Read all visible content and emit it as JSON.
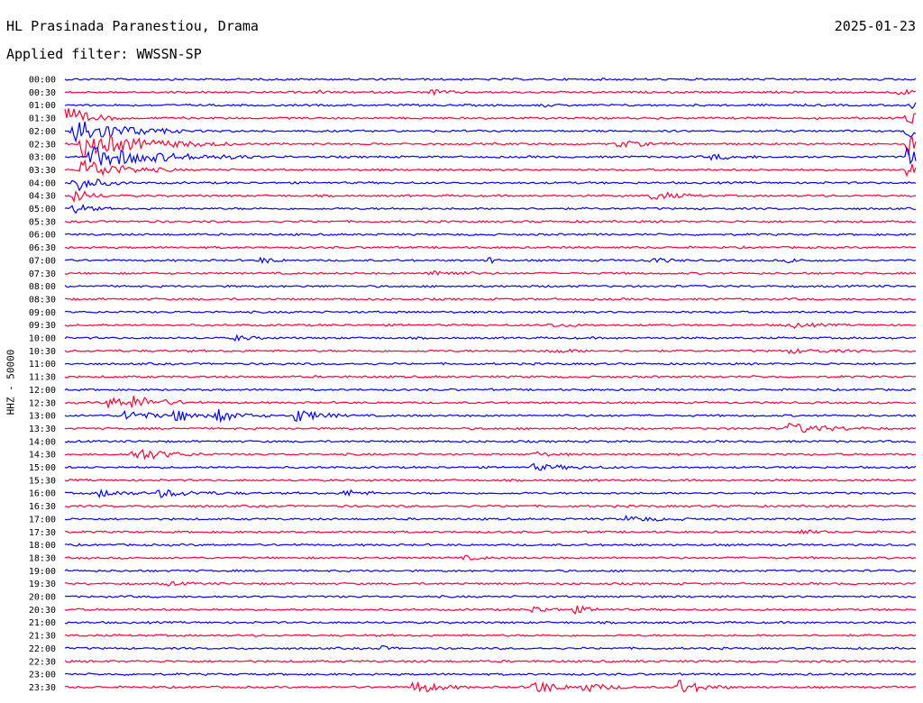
{
  "header": {
    "station": "HL Prasinada Paranestiou, Drama",
    "date": "2025-01-23",
    "filter": "Applied filter: WWSSN-SP"
  },
  "chart_data": {
    "type": "line",
    "title": "HL Prasinada Paranestiou, Drama",
    "ylabel": "HHZ - 50000",
    "row_labels": [
      "00:00",
      "00:30",
      "01:00",
      "01:30",
      "02:00",
      "02:30",
      "03:00",
      "03:30",
      "04:00",
      "04:30",
      "05:00",
      "05:30",
      "06:00",
      "06:30",
      "07:00",
      "07:30",
      "08:00",
      "08:30",
      "09:00",
      "09:30",
      "10:00",
      "10:30",
      "11:00",
      "11:30",
      "12:00",
      "12:30",
      "13:00",
      "13:30",
      "14:00",
      "14:30",
      "15:00",
      "15:30",
      "16:00",
      "16:30",
      "17:00",
      "17:30",
      "18:00",
      "18:30",
      "19:00",
      "19:30",
      "20:00",
      "20:30",
      "21:00",
      "21:30",
      "22:00",
      "22:30",
      "23:00",
      "23:30"
    ],
    "colors": {
      "even": "#0000ff",
      "odd": "#ff0033"
    },
    "grid": false,
    "x_range_minutes": [
      0,
      30
    ],
    "events": [
      {
        "row": 0,
        "pos": 0.0,
        "amp": 1.0,
        "dur": 0.0
      },
      {
        "row": 1,
        "pos": 0.43,
        "amp": 3,
        "dur": 0.02
      },
      {
        "row": 1,
        "pos": 0.3,
        "amp": 2,
        "dur": 0.01
      },
      {
        "row": 1,
        "pos": 0.98,
        "amp": 3,
        "dur": 0.02
      },
      {
        "row": 2,
        "pos": 0.56,
        "amp": 2,
        "dur": 0.01
      },
      {
        "row": 2,
        "pos": 0.99,
        "amp": 10,
        "dur": 0.01
      },
      {
        "row": 3,
        "pos": 0.0,
        "amp": 14,
        "dur": 0.03
      },
      {
        "row": 3,
        "pos": 0.99,
        "amp": 14,
        "dur": 0.01
      },
      {
        "row": 4,
        "pos": 0.01,
        "amp": 16,
        "dur": 0.06
      },
      {
        "row": 4,
        "pos": 0.99,
        "amp": 14,
        "dur": 0.01
      },
      {
        "row": 5,
        "pos": 0.02,
        "amp": 14,
        "dur": 0.08
      },
      {
        "row": 5,
        "pos": 0.65,
        "amp": 4,
        "dur": 0.03
      },
      {
        "row": 5,
        "pos": 0.99,
        "amp": 14,
        "dur": 0.01
      },
      {
        "row": 6,
        "pos": 0.03,
        "amp": 12,
        "dur": 0.09
      },
      {
        "row": 6,
        "pos": 0.76,
        "amp": 3,
        "dur": 0.03
      },
      {
        "row": 6,
        "pos": 0.99,
        "amp": 14,
        "dur": 0.01
      },
      {
        "row": 7,
        "pos": 0.02,
        "amp": 12,
        "dur": 0.05
      },
      {
        "row": 7,
        "pos": 0.99,
        "amp": 14,
        "dur": 0.01
      },
      {
        "row": 8,
        "pos": 0.01,
        "amp": 10,
        "dur": 0.03
      },
      {
        "row": 9,
        "pos": 0.01,
        "amp": 8,
        "dur": 0.02
      },
      {
        "row": 9,
        "pos": 0.69,
        "amp": 5,
        "dur": 0.03
      },
      {
        "row": 10,
        "pos": 0.01,
        "amp": 6,
        "dur": 0.02
      },
      {
        "row": 14,
        "pos": 0.23,
        "amp": 3,
        "dur": 0.02
      },
      {
        "row": 14,
        "pos": 0.5,
        "amp": 8,
        "dur": 0.005
      },
      {
        "row": 14,
        "pos": 0.69,
        "amp": 3,
        "dur": 0.02
      },
      {
        "row": 14,
        "pos": 0.85,
        "amp": 2,
        "dur": 0.02
      },
      {
        "row": 15,
        "pos": 0.43,
        "amp": 4,
        "dur": 0.03
      },
      {
        "row": 19,
        "pos": 0.57,
        "amp": 2,
        "dur": 0.03
      },
      {
        "row": 19,
        "pos": 0.85,
        "amp": 3,
        "dur": 0.03
      },
      {
        "row": 20,
        "pos": 0.2,
        "amp": 3,
        "dur": 0.02
      },
      {
        "row": 21,
        "pos": 0.57,
        "amp": 2,
        "dur": 0.03
      },
      {
        "row": 21,
        "pos": 0.85,
        "amp": 2,
        "dur": 0.05
      },
      {
        "row": 25,
        "pos": 0.05,
        "amp": 6,
        "dur": 0.04
      },
      {
        "row": 25,
        "pos": 0.08,
        "amp": 5,
        "dur": 0.04
      },
      {
        "row": 26,
        "pos": 0.07,
        "amp": 7,
        "dur": 0.03
      },
      {
        "row": 26,
        "pos": 0.13,
        "amp": 7,
        "dur": 0.03
      },
      {
        "row": 26,
        "pos": 0.18,
        "amp": 6,
        "dur": 0.03
      },
      {
        "row": 26,
        "pos": 0.27,
        "amp": 8,
        "dur": 0.03
      },
      {
        "row": 27,
        "pos": 0.85,
        "amp": 6,
        "dur": 0.05
      },
      {
        "row": 29,
        "pos": 0.08,
        "amp": 8,
        "dur": 0.04
      },
      {
        "row": 29,
        "pos": 0.55,
        "amp": 3,
        "dur": 0.02
      },
      {
        "row": 30,
        "pos": 0.55,
        "amp": 3,
        "dur": 0.05
      },
      {
        "row": 32,
        "pos": 0.04,
        "amp": 4,
        "dur": 0.03
      },
      {
        "row": 32,
        "pos": 0.11,
        "amp": 4,
        "dur": 0.05
      },
      {
        "row": 32,
        "pos": 0.33,
        "amp": 4,
        "dur": 0.02
      },
      {
        "row": 34,
        "pos": 0.66,
        "amp": 3,
        "dur": 0.04
      },
      {
        "row": 35,
        "pos": 0.86,
        "amp": 3,
        "dur": 0.02
      },
      {
        "row": 37,
        "pos": 0.47,
        "amp": 2,
        "dur": 0.02
      },
      {
        "row": 39,
        "pos": 0.12,
        "amp": 2,
        "dur": 0.02
      },
      {
        "row": 41,
        "pos": 0.55,
        "amp": 4,
        "dur": 0.02
      },
      {
        "row": 41,
        "pos": 0.6,
        "amp": 4,
        "dur": 0.02
      },
      {
        "row": 44,
        "pos": 0.37,
        "amp": 3,
        "dur": 0.01
      },
      {
        "row": 47,
        "pos": 0.41,
        "amp": 8,
        "dur": 0.03
      },
      {
        "row": 47,
        "pos": 0.55,
        "amp": 8,
        "dur": 0.03
      },
      {
        "row": 47,
        "pos": 0.61,
        "amp": 5,
        "dur": 0.03
      },
      {
        "row": 47,
        "pos": 0.72,
        "amp": 9,
        "dur": 0.03
      }
    ]
  }
}
